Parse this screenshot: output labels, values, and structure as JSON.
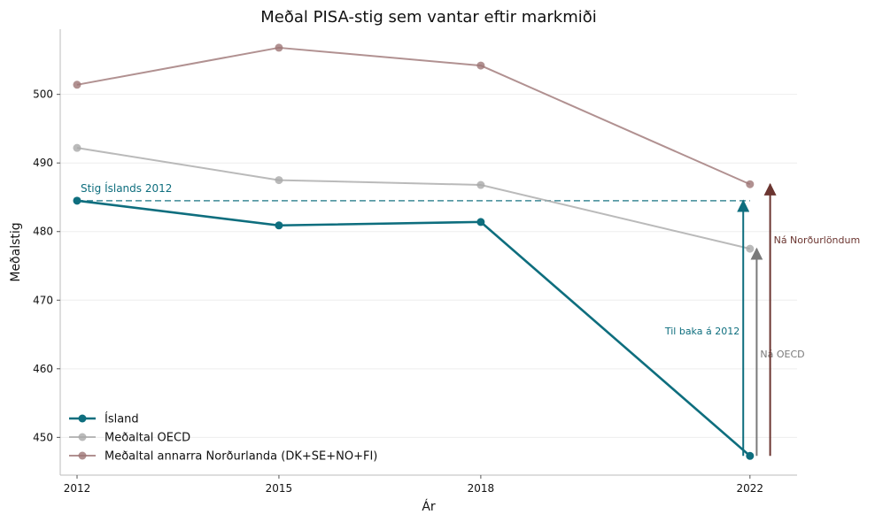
{
  "chart_data": {
    "type": "line",
    "title": "Meðal PISA-stig sem vantar eftir markmiði",
    "xlabel": "Ár",
    "ylabel": "Meðalstig",
    "x": [
      2012,
      2015,
      2018,
      2022
    ],
    "x_tick_labels": [
      "2012",
      "2015",
      "2018",
      "2022"
    ],
    "xlim": [
      2011.75,
      2022.7
    ],
    "ylim": [
      444.5,
      509.5
    ],
    "y_ticks": [
      450,
      460,
      470,
      480,
      490,
      500
    ],
    "y_tick_labels": [
      "450",
      "460",
      "470",
      "480",
      "490",
      "500"
    ],
    "grid": "horizontal, faint",
    "legend_position": "lower-left",
    "series": [
      {
        "name": "Ísland",
        "values": [
          484.5,
          480.9,
          481.4,
          447.3
        ],
        "color": "#0e6e7e",
        "emphasis": true
      },
      {
        "name": "Meðaltal OECD",
        "values": [
          492.2,
          487.5,
          486.8,
          477.5
        ],
        "color": "#a9a9a9",
        "emphasis": false
      },
      {
        "name": "Meðaltal annarra Norðurlanda (DK+SE+NO+FI)",
        "values": [
          501.4,
          506.8,
          504.2,
          486.9
        ],
        "color": "#9e7575",
        "emphasis": false
      }
    ],
    "reference_line": {
      "label": "Stig Íslands 2012",
      "value": 484.5,
      "color": "#0e6e7e"
    },
    "gap_arrows": [
      {
        "label": "Til baka á 2012",
        "x": 2021.9,
        "from": 447.3,
        "to": 484.5,
        "color": "#0e6e7e",
        "label_side": "left",
        "label_y": 465.5
      },
      {
        "label": "Ná OECD",
        "x": 2022.1,
        "from": 447.3,
        "to": 477.5,
        "color": "#7a7a7a",
        "label_side": "right",
        "label_y": 462.2
      },
      {
        "label": "Ná Norðurlöndum",
        "x": 2022.3,
        "from": 447.3,
        "to": 486.9,
        "color": "#6b3530",
        "label_side": "right",
        "label_y": 478.8
      }
    ]
  }
}
